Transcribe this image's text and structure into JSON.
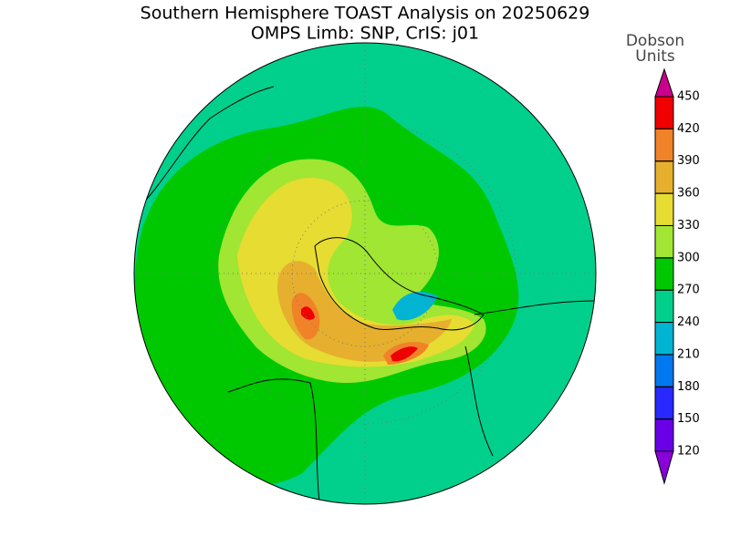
{
  "title": [
    "Southern Hemisphere TOAST Analysis on 20250629",
    "OMPS Limb: SNP, CrIS: j01"
  ],
  "colorbar": {
    "label": [
      "Dobson",
      "Units"
    ],
    "ticks": [
      120,
      150,
      180,
      210,
      240,
      270,
      300,
      330,
      360,
      390,
      420,
      450
    ],
    "colors": [
      "#8a00d8",
      "#6a00e8",
      "#2828ff",
      "#0078f0",
      "#00b4d2",
      "#00d08c",
      "#00c800",
      "#a0e632",
      "#e6dc32",
      "#e6b02e",
      "#f08228",
      "#f00000",
      "#c8008c"
    ]
  }
}
